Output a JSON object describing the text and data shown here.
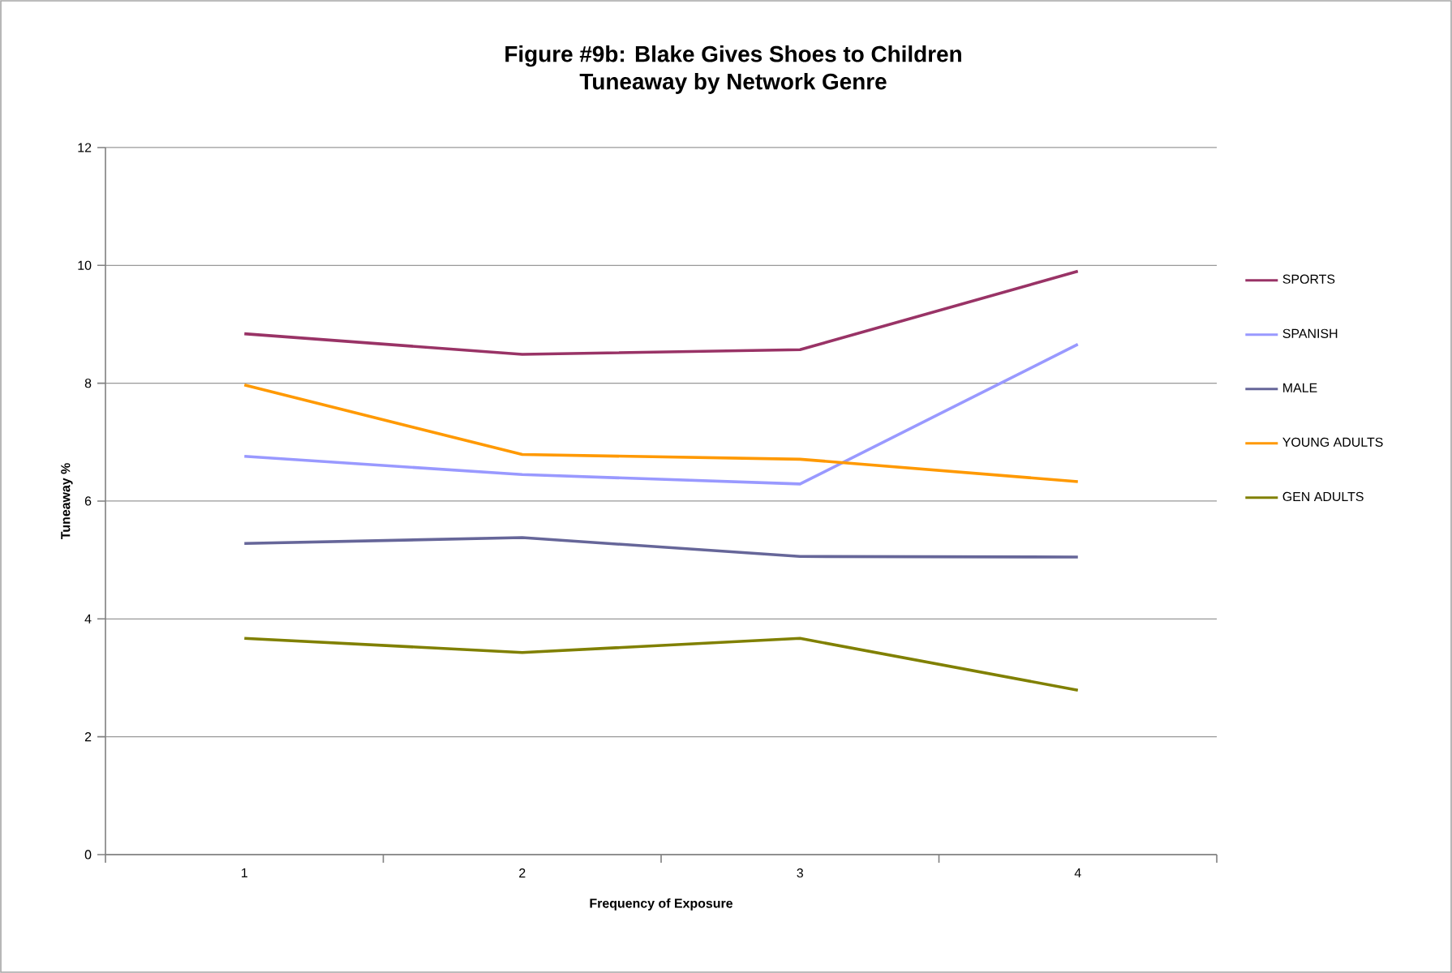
{
  "chart_data": {
    "type": "line",
    "title": "Figure #9b:  Blake Gives Shoes to Children",
    "subtitle": "Tuneaway by Network Genre",
    "xlabel": "Frequency of Exposure",
    "ylabel": "Tuneaway %",
    "categories": [
      "1",
      "2",
      "3",
      "4"
    ],
    "series": [
      {
        "name": "SPORTS",
        "color": "#993366",
        "values": [
          8.84,
          8.49,
          8.57,
          9.9
        ]
      },
      {
        "name": "SPANISH",
        "color": "#9999ff",
        "values": [
          6.76,
          6.45,
          6.29,
          8.66
        ]
      },
      {
        "name": "MALE",
        "color": "#666699",
        "values": [
          5.28,
          5.38,
          5.06,
          5.05
        ]
      },
      {
        "name": "YOUNG ADULTS",
        "color": "#ff9900",
        "values": [
          7.97,
          6.79,
          6.71,
          6.33
        ]
      },
      {
        "name": "GEN ADULTS",
        "color": "#808000",
        "values": [
          3.67,
          3.43,
          3.67,
          2.79
        ]
      }
    ],
    "ylim": [
      0,
      12
    ],
    "yticks": [
      0,
      2,
      4,
      6,
      8,
      10,
      12
    ],
    "grid": "y",
    "legend": "right",
    "marker": "none",
    "line_style": "solid"
  }
}
